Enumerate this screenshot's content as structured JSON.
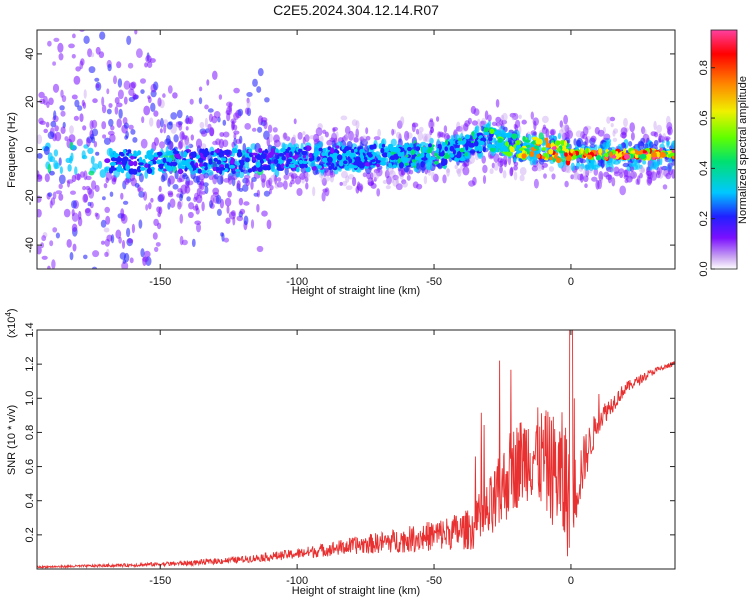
{
  "title": "C2E5.2024.304.12.14.R07",
  "chart_data": [
    {
      "type": "heatmap",
      "xlabel": "Height of straight line (km)",
      "ylabel": "Frequency (Hz)",
      "xlim": [
        -195,
        38
      ],
      "ylim": [
        -50,
        50
      ],
      "x_ticks": [
        "-150",
        "-100",
        "-50",
        "0"
      ],
      "y_ticks": [
        "40",
        "20",
        "0",
        "-20",
        "-40"
      ],
      "colorbar": {
        "label": "Normalized spectral amplitude",
        "range": [
          0,
          0.95
        ],
        "ticks": [
          "0.8",
          "0.6",
          "0.4",
          "0.2",
          "0.0"
        ],
        "colors": [
          "#ffffff",
          "#c9a4f2",
          "#7b10ff",
          "#2020ff",
          "#00c8ff",
          "#00e070",
          "#60ff00",
          "#f0f000",
          "#ff8000",
          "#ff0000",
          "#ff40a0"
        ]
      },
      "ridge": {
        "x": [
          -190,
          -160,
          -130,
          -100,
          -75,
          -50,
          -40,
          -35,
          -30,
          -25,
          -20,
          -10,
          -5,
          0,
          10,
          20,
          38
        ],
        "y": [
          -4,
          -5,
          -5,
          -4,
          -3,
          -2,
          0,
          3,
          5,
          3,
          1,
          0,
          0,
          -2,
          -2,
          -2,
          -2
        ]
      },
      "hotspots": {
        "x": [
          -150,
          -115,
          -90,
          -70,
          -55,
          -45,
          -35,
          -28,
          -20,
          -12,
          -8,
          -3,
          5,
          15,
          25,
          35
        ],
        "y": [
          -5,
          -4,
          -3,
          -3,
          -2,
          -1,
          4,
          3,
          1,
          0,
          0,
          -1,
          -2,
          -2,
          -2,
          -2
        ],
        "amplitude": [
          0.35,
          0.3,
          0.35,
          0.4,
          0.45,
          0.45,
          0.4,
          0.55,
          0.7,
          0.9,
          0.9,
          0.85,
          0.9,
          0.95,
          0.95,
          0.9
        ]
      }
    },
    {
      "type": "line",
      "xlabel": "Height of straight line (km)",
      "ylabel": "SNR (10 * v/v)",
      "yscale_label": "(x10",
      "yscale_exp": "4",
      "xlim": [
        -195,
        38
      ],
      "ylim": [
        0,
        1.4
      ],
      "x_ticks": [
        "-150",
        "-100",
        "-50",
        "0"
      ],
      "y_ticks": [
        "1.4",
        "1.2",
        "1.0",
        "0.8",
        "0.6",
        "0.4",
        "0.2"
      ],
      "color": "#e83030",
      "envelope": {
        "x": [
          -195,
          -160,
          -140,
          -120,
          -100,
          -80,
          -60,
          -45,
          -35,
          -28,
          -22,
          -15,
          -10,
          -5,
          -2,
          0,
          5,
          10,
          20,
          30,
          38
        ],
        "base": [
          0.01,
          0.02,
          0.03,
          0.05,
          0.08,
          0.12,
          0.15,
          0.18,
          0.2,
          0.3,
          0.5,
          0.6,
          0.55,
          0.45,
          0.35,
          0.3,
          0.6,
          0.85,
          1.05,
          1.15,
          1.2
        ],
        "amp": [
          0.01,
          0.02,
          0.03,
          0.04,
          0.06,
          0.1,
          0.15,
          0.2,
          0.25,
          0.45,
          0.5,
          0.55,
          0.6,
          0.7,
          0.9,
          0.5,
          0.3,
          0.15,
          0.07,
          0.04,
          0.03
        ]
      }
    }
  ]
}
